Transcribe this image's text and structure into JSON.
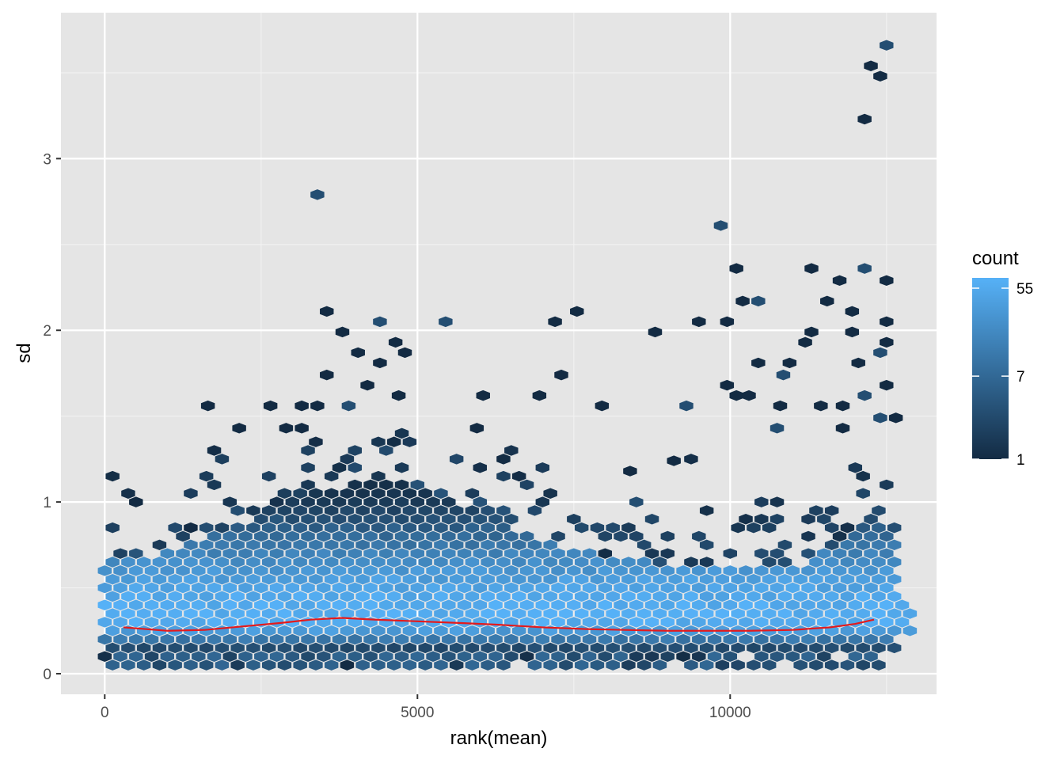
{
  "chart_data": {
    "type": "hexbin",
    "xlabel": "rank(mean)",
    "ylabel": "sd",
    "xlim": [
      -700,
      13300
    ],
    "ylim": [
      -0.12,
      3.85
    ],
    "x_ticks": [
      0,
      5000,
      10000
    ],
    "x_tick_labels": [
      "0",
      "5000",
      "10000"
    ],
    "y_ticks": [
      0,
      1,
      2,
      3
    ],
    "y_tick_labels": [
      "0",
      "1",
      "2",
      "3"
    ],
    "grid": true,
    "panel_background": "#e5e5e5",
    "legend": {
      "title": "count",
      "position": "right",
      "scale": "log",
      "breaks": [
        1,
        7,
        55
      ],
      "break_labels": [
        "1",
        "7",
        "55"
      ],
      "range": [
        1,
        70
      ],
      "color_low": "#132b43",
      "color_high": "#56b1f7"
    },
    "hexbin": {
      "bin_width_x": 250,
      "bin_width_y": 0.05,
      "x_range": [
        0,
        12800
      ],
      "band_low": 0.05,
      "band_center": 0.3,
      "band_top": 1.0,
      "density_peak_sd": 0.32
    },
    "outliers": [
      {
        "x": 3400,
        "y": 2.79
      },
      {
        "x": 3550,
        "y": 2.11
      },
      {
        "x": 3550,
        "y": 1.74
      },
      {
        "x": 3800,
        "y": 1.99
      },
      {
        "x": 4050,
        "y": 1.87
      },
      {
        "x": 4400,
        "y": 2.05
      },
      {
        "x": 4400,
        "y": 1.81
      },
      {
        "x": 4650,
        "y": 1.93
      },
      {
        "x": 4800,
        "y": 1.87
      },
      {
        "x": 4200,
        "y": 1.68
      },
      {
        "x": 5450,
        "y": 2.05
      },
      {
        "x": 7200,
        "y": 2.05
      },
      {
        "x": 7550,
        "y": 2.11
      },
      {
        "x": 7300,
        "y": 1.74
      },
      {
        "x": 8800,
        "y": 1.99
      },
      {
        "x": 9850,
        "y": 2.61
      },
      {
        "x": 10100,
        "y": 2.36
      },
      {
        "x": 9500,
        "y": 2.05
      },
      {
        "x": 9950,
        "y": 2.05
      },
      {
        "x": 10200,
        "y": 2.17
      },
      {
        "x": 10450,
        "y": 2.17
      },
      {
        "x": 11300,
        "y": 2.36
      },
      {
        "x": 11550,
        "y": 2.17
      },
      {
        "x": 11750,
        "y": 2.29
      },
      {
        "x": 11950,
        "y": 2.11
      },
      {
        "x": 12150,
        "y": 2.36
      },
      {
        "x": 12500,
        "y": 2.29
      },
      {
        "x": 12150,
        "y": 3.23
      },
      {
        "x": 12250,
        "y": 3.54
      },
      {
        "x": 12400,
        "y": 3.48
      },
      {
        "x": 12500,
        "y": 3.66
      },
      {
        "x": 11300,
        "y": 1.99
      },
      {
        "x": 11950,
        "y": 1.99
      },
      {
        "x": 12500,
        "y": 2.05
      },
      {
        "x": 12500,
        "y": 1.93
      },
      {
        "x": 12400,
        "y": 1.87
      },
      {
        "x": 12050,
        "y": 1.81
      },
      {
        "x": 11200,
        "y": 1.93
      },
      {
        "x": 10450,
        "y": 1.81
      },
      {
        "x": 10950,
        "y": 1.81
      },
      {
        "x": 10850,
        "y": 1.74
      },
      {
        "x": 9950,
        "y": 1.68
      },
      {
        "x": 10100,
        "y": 1.62
      },
      {
        "x": 10300,
        "y": 1.62
      },
      {
        "x": 12500,
        "y": 1.68
      },
      {
        "x": 12150,
        "y": 1.62
      },
      {
        "x": 1650,
        "y": 1.56
      },
      {
        "x": 2650,
        "y": 1.56
      },
      {
        "x": 3150,
        "y": 1.56
      },
      {
        "x": 3400,
        "y": 1.56
      },
      {
        "x": 3900,
        "y": 1.56
      },
      {
        "x": 4700,
        "y": 1.62
      },
      {
        "x": 6050,
        "y": 1.62
      },
      {
        "x": 6950,
        "y": 1.62
      },
      {
        "x": 7950,
        "y": 1.56
      },
      {
        "x": 9300,
        "y": 1.56
      },
      {
        "x": 10800,
        "y": 1.56
      },
      {
        "x": 11450,
        "y": 1.56
      },
      {
        "x": 11800,
        "y": 1.56
      },
      {
        "x": 12650,
        "y": 1.49
      },
      {
        "x": 12400,
        "y": 1.49
      },
      {
        "x": 2150,
        "y": 1.43
      },
      {
        "x": 2900,
        "y": 1.43
      },
      {
        "x": 3150,
        "y": 1.43
      },
      {
        "x": 5950,
        "y": 1.43
      },
      {
        "x": 10750,
        "y": 1.43
      },
      {
        "x": 11800,
        "y": 1.43
      },
      {
        "x": 8400,
        "y": 1.18
      },
      {
        "x": 9100,
        "y": 1.24
      },
      {
        "x": 500,
        "y": 1.0
      },
      {
        "x": 8500,
        "y": 1.0
      }
    ],
    "trend_line": {
      "name": "",
      "color": "#e41a1c",
      "x": [
        300,
        1000,
        1600,
        2200,
        2800,
        3300,
        3800,
        4300,
        5000,
        5700,
        6300,
        7000,
        7700,
        8300,
        9000,
        9700,
        10300,
        11000,
        11600,
        12000,
        12300
      ],
      "y": [
        0.27,
        0.25,
        0.255,
        0.275,
        0.295,
        0.315,
        0.325,
        0.315,
        0.305,
        0.295,
        0.285,
        0.27,
        0.26,
        0.255,
        0.25,
        0.25,
        0.25,
        0.255,
        0.27,
        0.29,
        0.315
      ]
    }
  }
}
